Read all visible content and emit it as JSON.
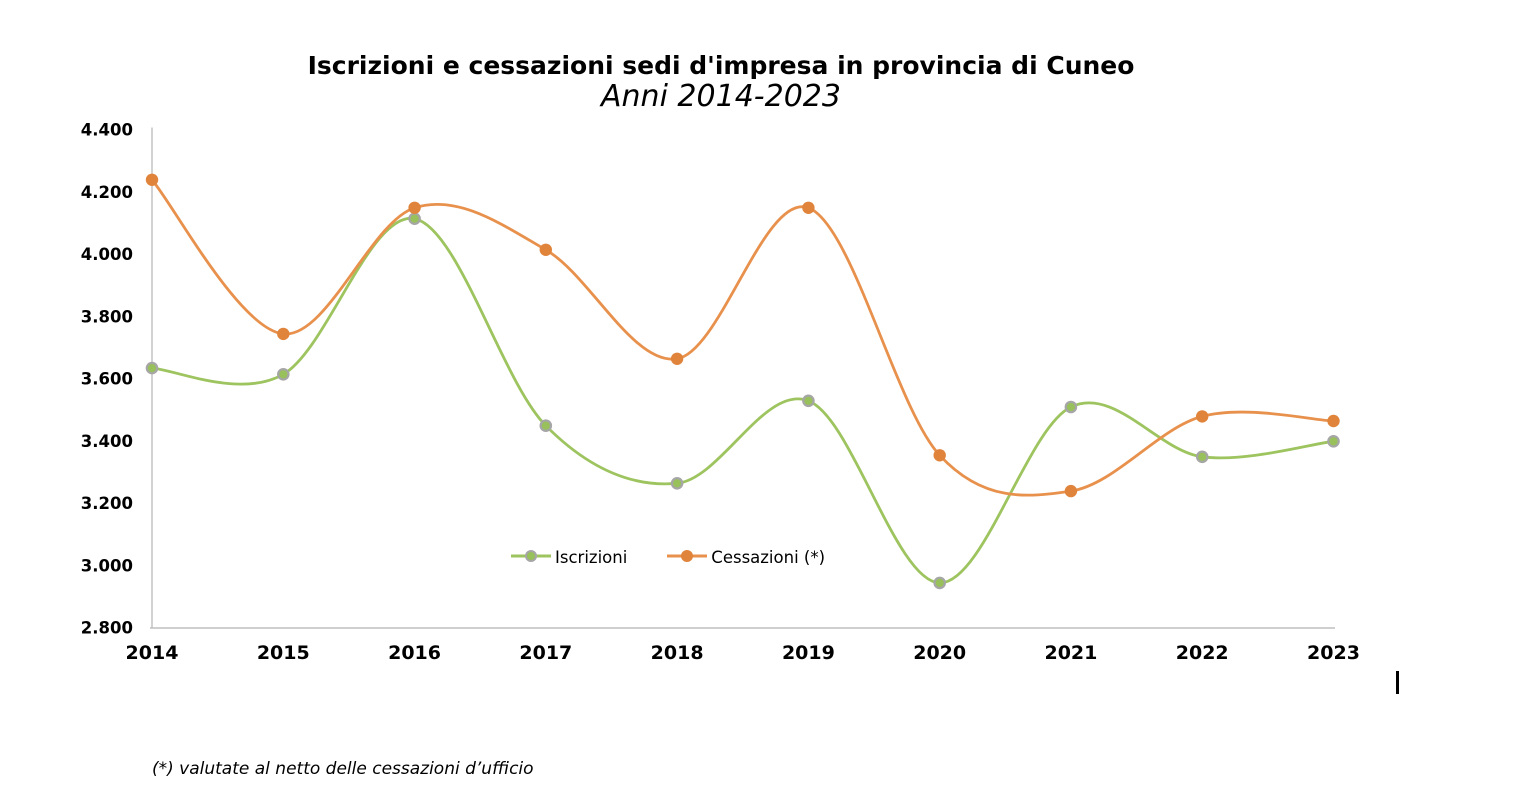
{
  "chart_data": {
    "type": "line",
    "smooth": true,
    "title": "Iscrizioni e cessazioni sedi d'impresa in provincia di Cuneo",
    "subtitle": "Anni 2014-2023",
    "footnote": "(*) valutate al netto delle cessazioni d’ufficio",
    "categories": [
      "2014",
      "2015",
      "2016",
      "2017",
      "2018",
      "2019",
      "2020",
      "2021",
      "2022",
      "2023"
    ],
    "series": [
      {
        "name": "Iscrizioni",
        "color_line": "#9dc45f",
        "color_marker": "#98c05b",
        "marker_ring": "#a6a6a6",
        "values": [
          3635,
          3615,
          4115,
          3450,
          3265,
          3530,
          2945,
          3510,
          3350,
          3400
        ]
      },
      {
        "name": "Cessazioni (*)",
        "color_line": "#e8914d",
        "color_marker": "#e0843c",
        "marker_ring": null,
        "values": [
          4240,
          3745,
          4150,
          4015,
          3665,
          4150,
          3355,
          3240,
          3480,
          3465
        ]
      }
    ],
    "ylim": [
      2800,
      4400
    ],
    "y_tick_step": 200,
    "y_tick_labels": [
      "2.800",
      "3.000",
      "3.200",
      "3.400",
      "3.600",
      "3.800",
      "4.000",
      "4.200",
      "4.400"
    ],
    "xlabel": "",
    "ylabel": "",
    "grid": false,
    "legend_position": "inside-bottom-center",
    "axis_color": "#bfbfbf"
  }
}
